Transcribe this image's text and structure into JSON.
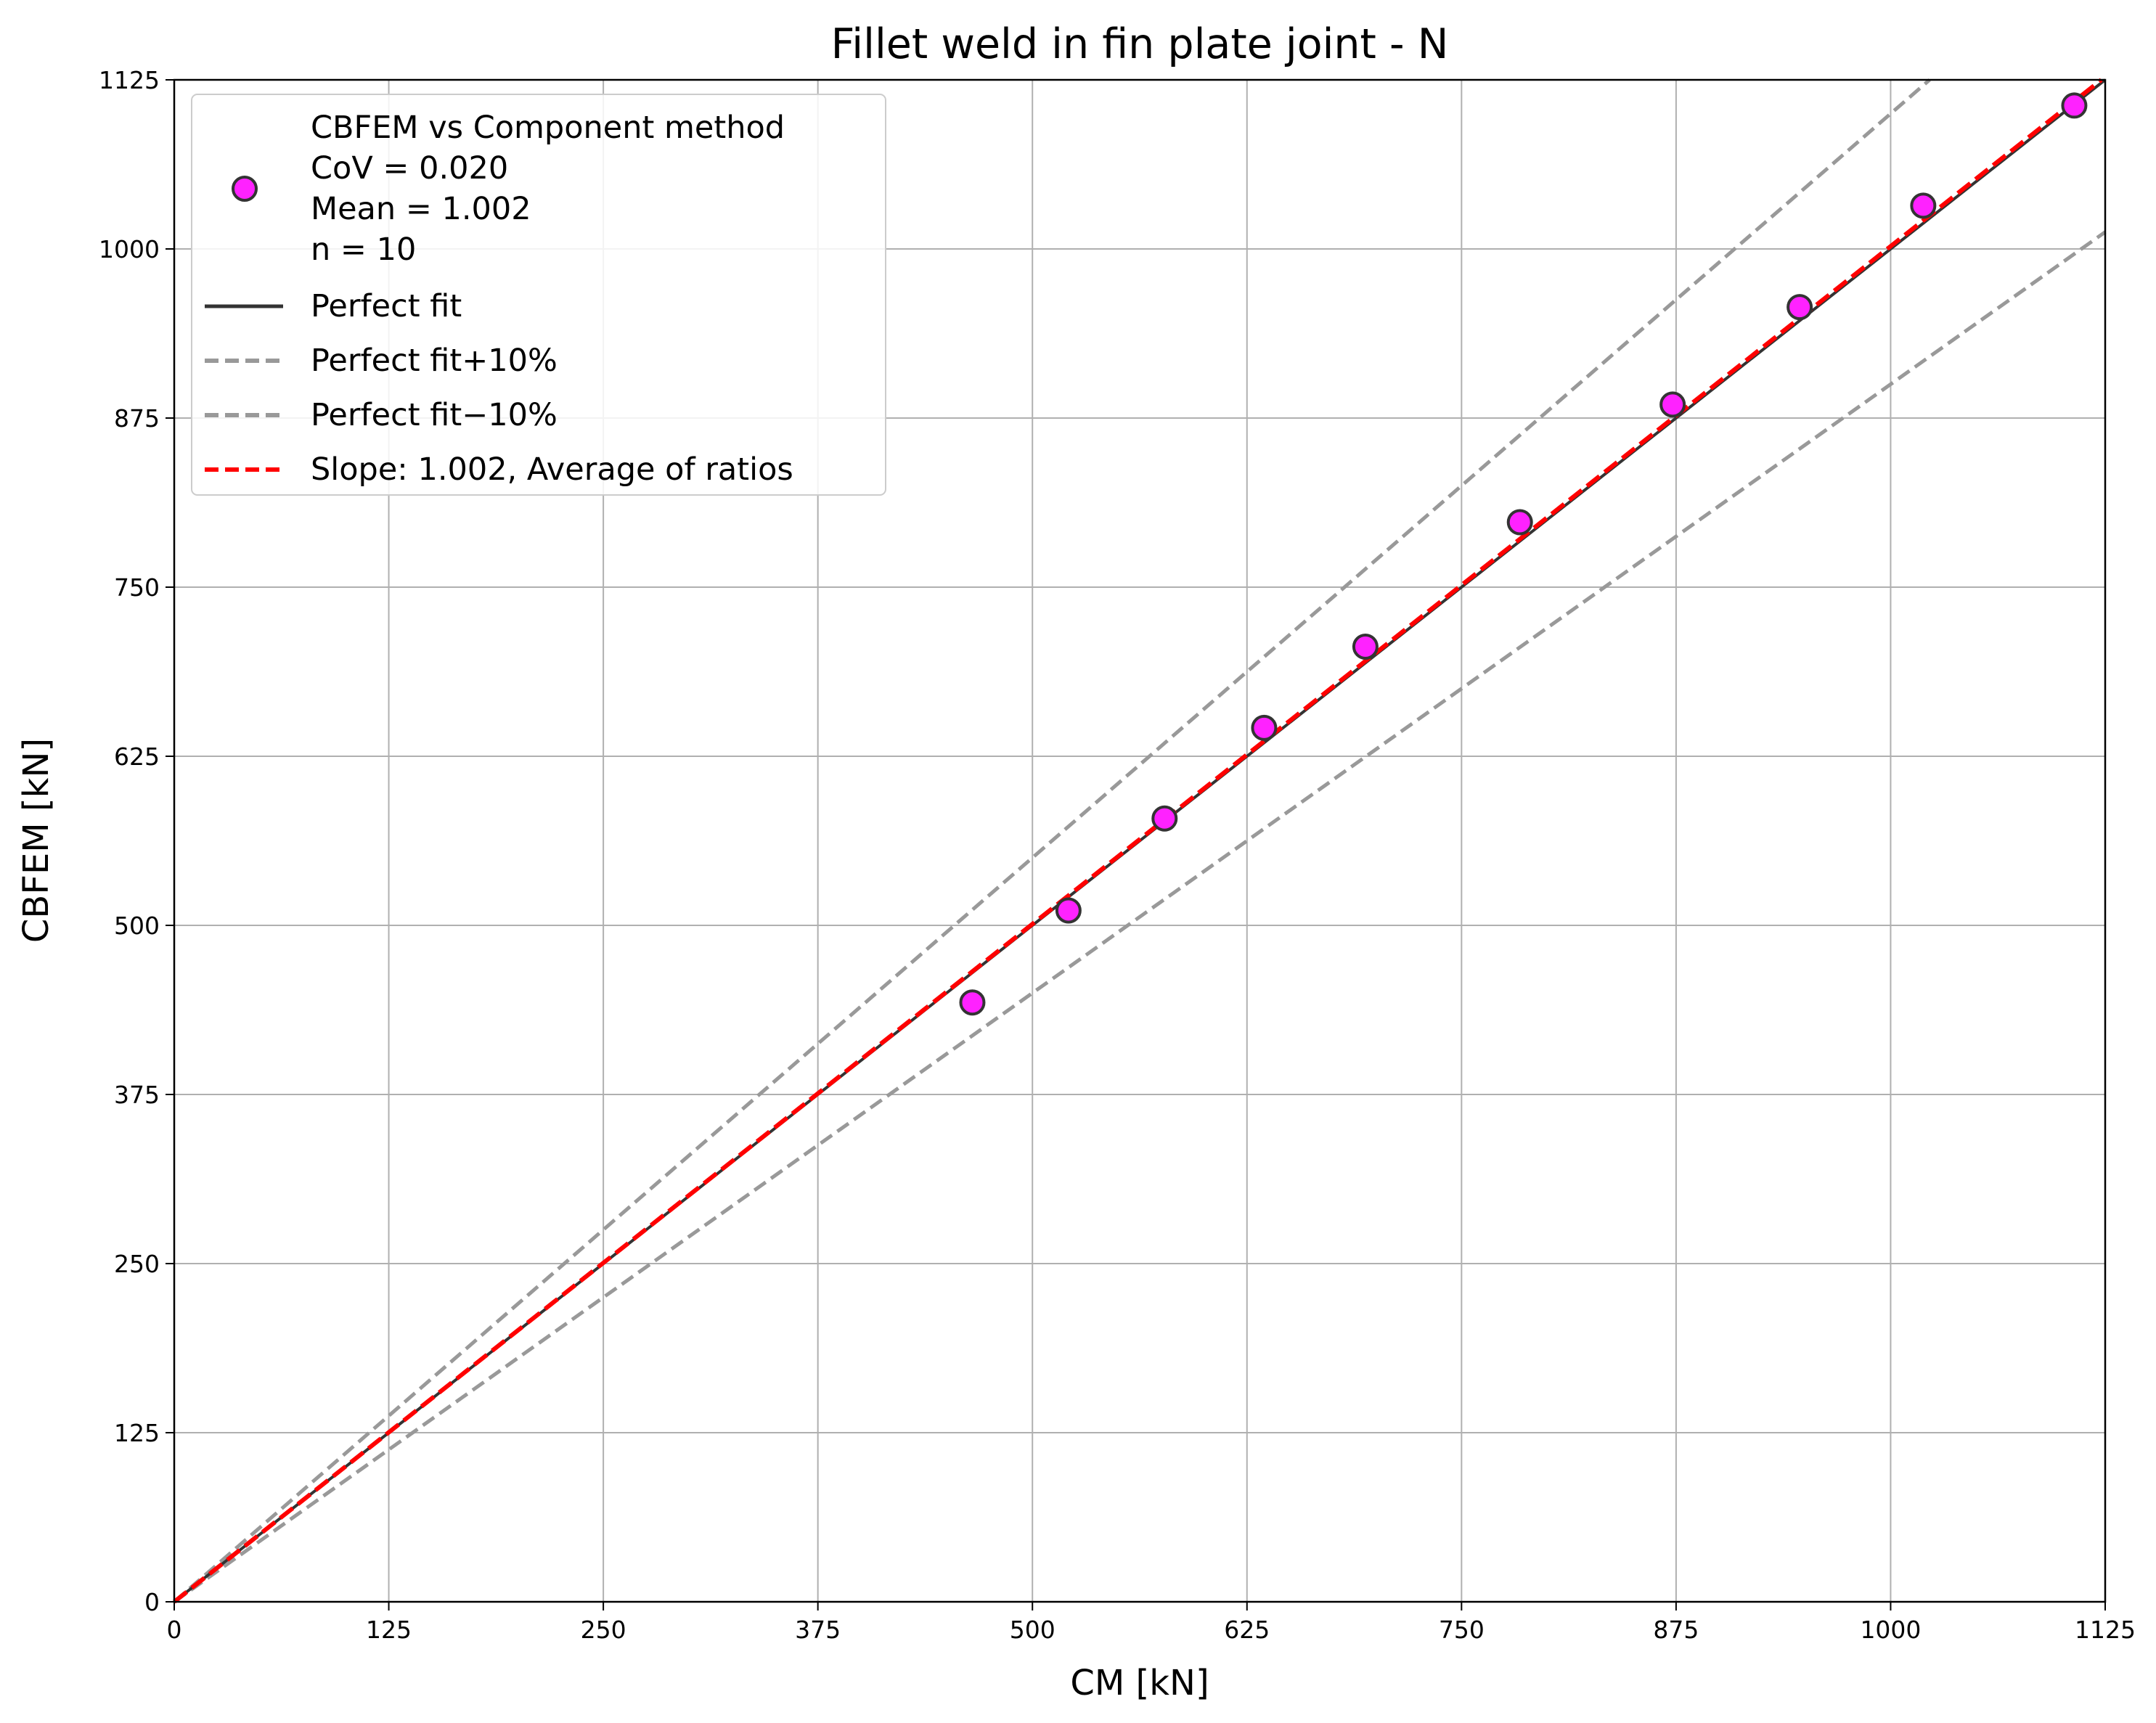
{
  "chart_data": {
    "type": "scatter",
    "title": "Fillet weld in fin plate joint - N",
    "xlabel": "CM [kN]",
    "ylabel": "CBFEM [kN]",
    "xlim": [
      0,
      1125
    ],
    "ylim": [
      0,
      1125
    ],
    "xticks": [
      "0",
      "125",
      "250",
      "375",
      "500",
      "625",
      "750",
      "875",
      "1000",
      "1125"
    ],
    "yticks": [
      "0",
      "125",
      "250",
      "375",
      "500",
      "625",
      "750",
      "875",
      "1000",
      "1125"
    ],
    "grid": true,
    "legend_position": "top-left",
    "series": [
      {
        "name": "CBFEM vs Component method\nCoV = 0.020\nMean = 1.002\nn = 10",
        "kind": "scatter",
        "color": "#ff22ff",
        "edge_color": "#333333",
        "points": [
          {
            "x": 465,
            "y": 443
          },
          {
            "x": 521,
            "y": 511
          },
          {
            "x": 577,
            "y": 579
          },
          {
            "x": 635,
            "y": 646
          },
          {
            "x": 694,
            "y": 706
          },
          {
            "x": 784,
            "y": 798
          },
          {
            "x": 873,
            "y": 885
          },
          {
            "x": 947,
            "y": 957
          },
          {
            "x": 1019,
            "y": 1032
          },
          {
            "x": 1107,
            "y": 1106
          }
        ]
      },
      {
        "name": "Perfect fit",
        "kind": "line",
        "slope": 1.0,
        "color": "#333333",
        "dash": "solid"
      },
      {
        "name": "Perfect fit+10%",
        "kind": "line",
        "slope": 1.1,
        "color": "#999999",
        "dash": "dashed"
      },
      {
        "name": "Perfect fit−10%",
        "kind": "line",
        "slope": 0.9,
        "color": "#999999",
        "dash": "dashed"
      },
      {
        "name": "Slope: 1.002, Average of ratios",
        "kind": "line",
        "slope": 1.002,
        "color": "#ff0000",
        "dash": "dashed"
      }
    ]
  }
}
